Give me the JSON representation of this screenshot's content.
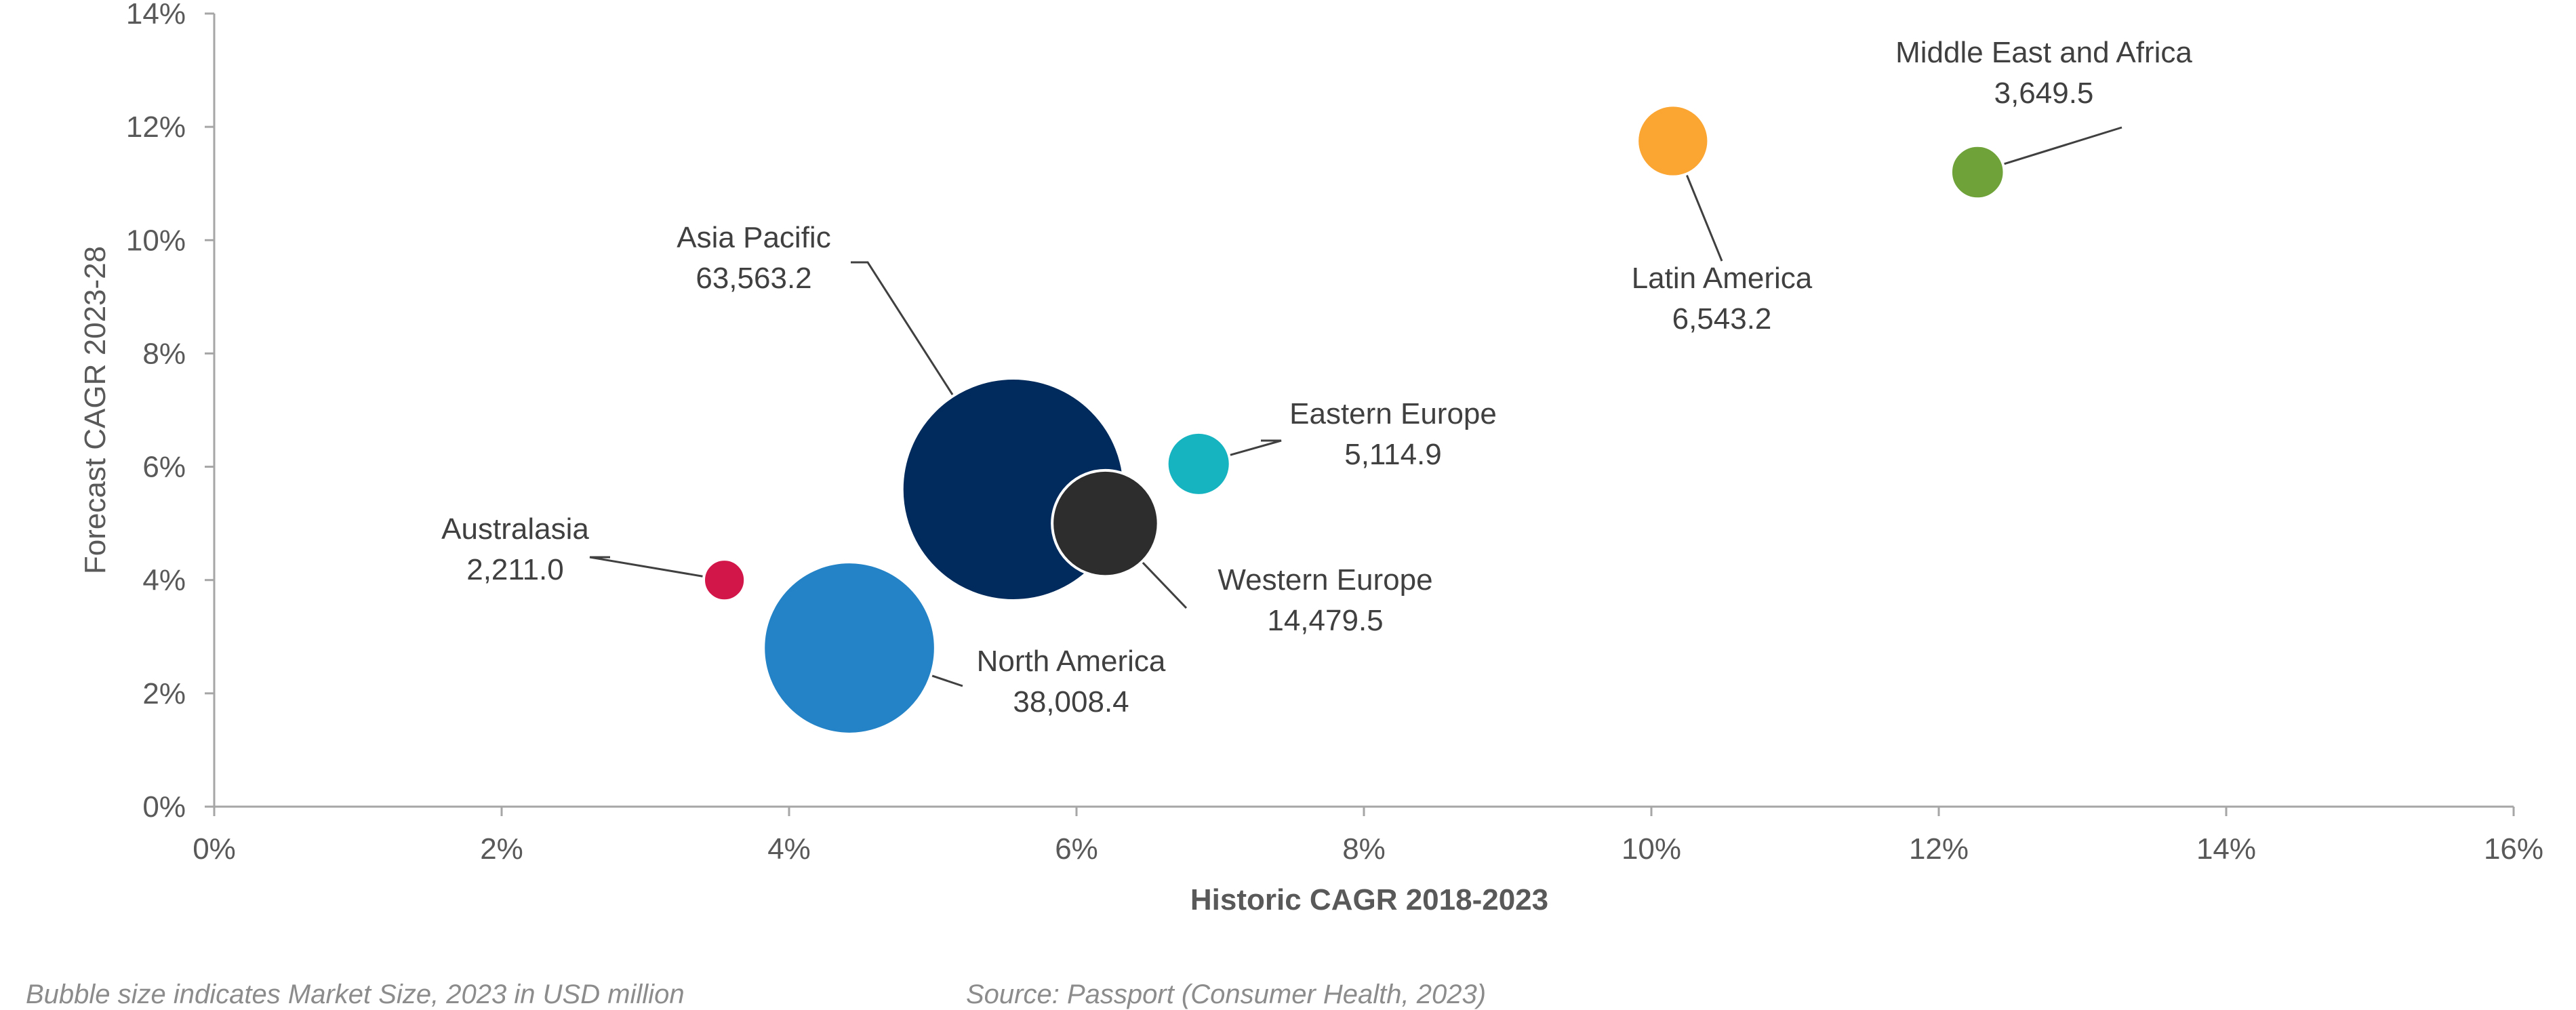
{
  "chart_data": {
    "type": "bubble",
    "xlabel": "Historic CAGR 2018-2023",
    "ylabel": "Forecast CAGR 2023-28",
    "xlim": [
      0,
      16
    ],
    "ylim": [
      0,
      14
    ],
    "x_ticks": [
      "0%",
      "2%",
      "4%",
      "6%",
      "8%",
      "10%",
      "12%",
      "14%",
      "16%"
    ],
    "y_ticks": [
      "0%",
      "2%",
      "4%",
      "6%",
      "8%",
      "10%",
      "12%",
      "14%"
    ],
    "grid": false,
    "points": [
      {
        "name": "Asia Pacific",
        "value_label": "63,563.2",
        "size": 63563.2,
        "x": 5.56,
        "y": 5.6,
        "color": "#002B5C"
      },
      {
        "name": "North America",
        "value_label": "38,008.4",
        "size": 38008.4,
        "x": 4.42,
        "y": 2.8,
        "color": "#2383C6"
      },
      {
        "name": "Western Europe",
        "value_label": "14,479.5",
        "size": 14479.5,
        "x": 6.2,
        "y": 5.0,
        "color": "#2D2D2D"
      },
      {
        "name": "Latin America",
        "value_label": "6,543.2",
        "size": 6543.2,
        "x": 10.15,
        "y": 11.75,
        "color": "#FBA633"
      },
      {
        "name": "Eastern Europe",
        "value_label": "5,114.9",
        "size": 5114.9,
        "x": 6.85,
        "y": 6.05,
        "color": "#16B3C1"
      },
      {
        "name": "Middle East and Africa",
        "value_label": "3,649.5",
        "size": 3649.5,
        "x": 12.27,
        "y": 11.2,
        "color": "#6FA33A"
      },
      {
        "name": "Australasia",
        "value_label": "2,211.0",
        "size": 2211.0,
        "x": 3.55,
        "y": 4.0,
        "color": "#D2164A"
      }
    ]
  },
  "footnote_left": "Bubble size indicates Market Size, 2023 in USD million",
  "footnote_right": "Source: Passport (Consumer Health, 2023)"
}
